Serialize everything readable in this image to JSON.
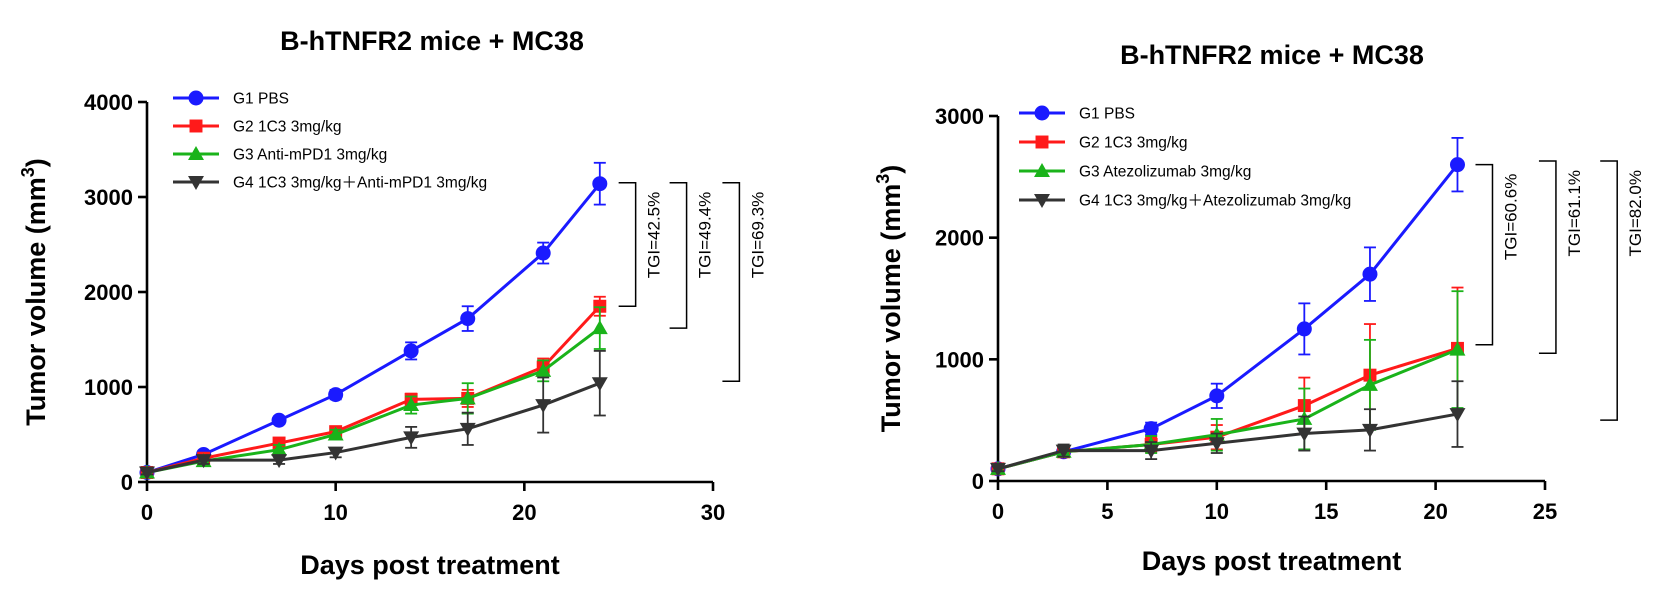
{
  "chart_data": [
    {
      "type": "line",
      "title": "B-hTNFR2 mice + MC38",
      "xlabel": "Days post treatment",
      "ylabel": "Tumor volume (mm",
      "ylabel_sup": "3",
      "ylabel_close": ")",
      "xlim": [
        0,
        30
      ],
      "ylim": [
        0,
        4000
      ],
      "xticks": [
        0,
        10,
        20,
        30
      ],
      "yticks": [
        0,
        1000,
        2000,
        3000,
        4000
      ],
      "x": [
        0,
        3,
        7,
        10,
        14,
        17,
        21,
        24
      ],
      "legend_position": "top-left",
      "series": [
        {
          "name": "G1 PBS",
          "color": "#1a1aff",
          "marker": "circle",
          "values": [
            100,
            290,
            650,
            920,
            1380,
            1720,
            2410,
            3140
          ],
          "errors": [
            20,
            30,
            40,
            50,
            90,
            130,
            110,
            220
          ]
        },
        {
          "name": "G2 1C3 3mg/kg",
          "color": "#ff1a1a",
          "marker": "square",
          "values": [
            100,
            250,
            410,
            530,
            870,
            880,
            1210,
            1850
          ],
          "errors": [
            20,
            30,
            40,
            40,
            60,
            90,
            90,
            100
          ]
        },
        {
          "name": "G3 Anti-mPD1 3mg/kg",
          "color": "#1ab31a",
          "marker": "triangle-up",
          "values": [
            100,
            220,
            340,
            500,
            810,
            880,
            1170,
            1620
          ],
          "errors": [
            20,
            40,
            50,
            50,
            90,
            160,
            110,
            220
          ]
        },
        {
          "name": "G4 1C3 3mg/kg＋Anti-mPD1 3mg/kg",
          "color": "#333333",
          "marker": "triangle-down",
          "values": [
            100,
            230,
            230,
            310,
            470,
            560,
            810,
            1040
          ],
          "errors": [
            20,
            40,
            40,
            50,
            110,
            170,
            290,
            340
          ]
        }
      ],
      "annotations": [
        {
          "text": "TGI=42.5%",
          "top": 3150,
          "bottom": 1850,
          "x": 25.9
        },
        {
          "text": "TGI=49.4%",
          "top": 3150,
          "bottom": 1620,
          "x": 28.6
        },
        {
          "text": "TGI=69.3%",
          "top": 3150,
          "bottom": 1060,
          "x": 31.4
        }
      ]
    },
    {
      "type": "line",
      "title": "B-hTNFR2 mice + MC38",
      "xlabel": "Days post treatment",
      "ylabel": "Tumor volume (mm",
      "ylabel_sup": "3",
      "ylabel_close": ")",
      "xlim": [
        0,
        25
      ],
      "ylim": [
        0,
        3000
      ],
      "xticks": [
        0,
        5,
        10,
        15,
        20,
        25
      ],
      "yticks": [
        0,
        1000,
        2000,
        3000
      ],
      "x": [
        0,
        3,
        7,
        10,
        14,
        17,
        21
      ],
      "legend_position": "top-left",
      "series": [
        {
          "name": "G1 PBS",
          "color": "#1a1aff",
          "marker": "circle",
          "values": [
            100,
            240,
            430,
            700,
            1250,
            1700,
            2600
          ],
          "errors": [
            20,
            30,
            50,
            100,
            210,
            220,
            220
          ]
        },
        {
          "name": "G2 1C3 3mg/kg",
          "color": "#ff1a1a",
          "marker": "square",
          "values": [
            100,
            240,
            300,
            360,
            620,
            870,
            1090
          ],
          "errors": [
            20,
            40,
            60,
            100,
            230,
            420,
            500
          ]
        },
        {
          "name": "G3 Atezolizumab 3mg/kg",
          "color": "#1ab31a",
          "marker": "triangle-up",
          "values": [
            100,
            240,
            300,
            380,
            510,
            790,
            1080
          ],
          "errors": [
            20,
            40,
            70,
            130,
            250,
            370,
            480
          ]
        },
        {
          "name": "G4 1C3 3mg/kg＋Atezolizumab 3mg/kg",
          "color": "#333333",
          "marker": "triangle-down",
          "values": [
            100,
            250,
            250,
            310,
            390,
            420,
            550
          ],
          "errors": [
            20,
            50,
            70,
            80,
            140,
            170,
            270
          ]
        }
      ],
      "annotations": [
        {
          "text": "TGI=60.6%",
          "top": 2600,
          "bottom": 1120,
          "x": 22.6
        },
        {
          "text": "TGI=61.1%",
          "top": 2630,
          "bottom": 1050,
          "x": 25.5
        },
        {
          "text": "TGI=82.0%",
          "top": 2630,
          "bottom": 500,
          "x": 28.3
        }
      ]
    }
  ]
}
